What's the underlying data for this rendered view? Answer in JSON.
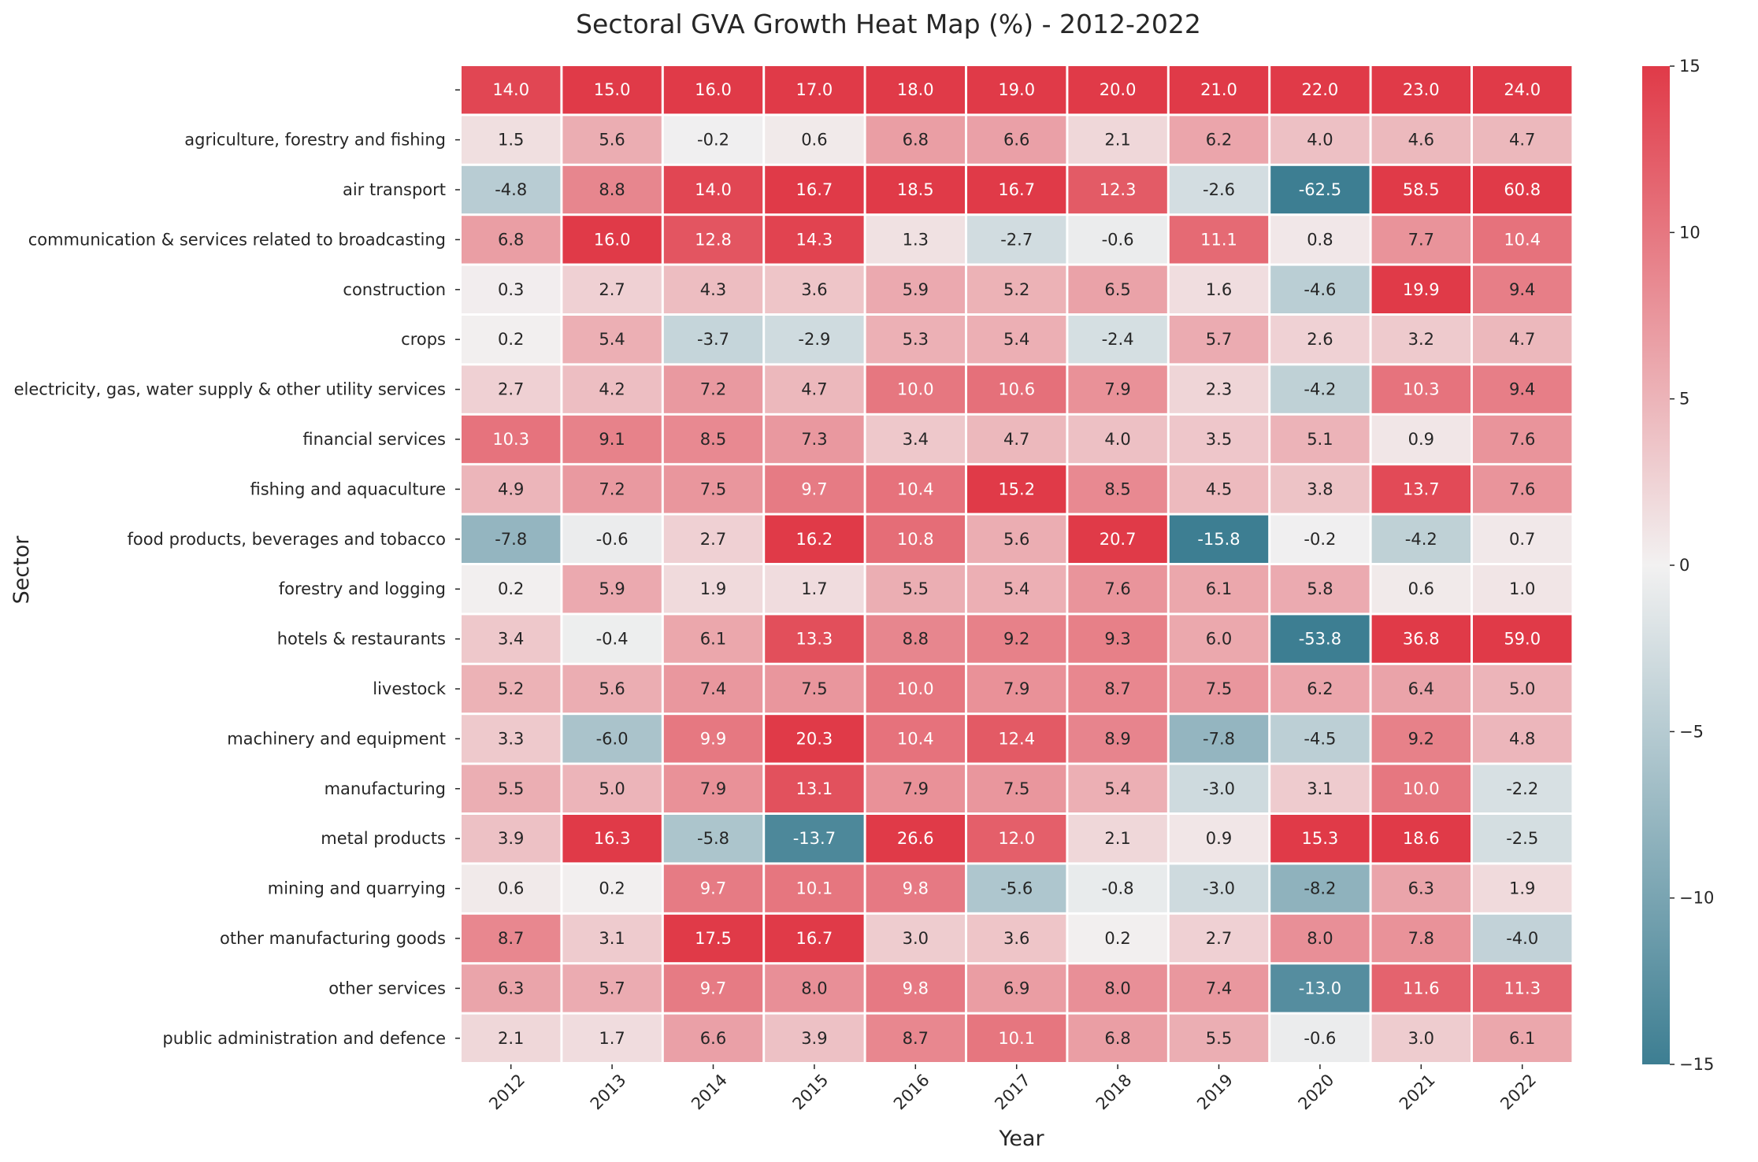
{
  "chart_data": {
    "type": "heatmap",
    "title": "Sectoral GVA Growth Heat Map (%) - 2012-2022",
    "xlabel": "Year",
    "ylabel": "Sector",
    "x": [
      "2012",
      "2013",
      "2014",
      "2015",
      "2016",
      "2017",
      "2018",
      "2019",
      "2020",
      "2021",
      "2022"
    ],
    "y": [
      "",
      "agriculture, forestry and fishing",
      "air transport",
      "communication & services related to broadcasting",
      "construction",
      "crops",
      "electricity, gas, water supply & other utility services",
      "financial services",
      "fishing and aquaculture",
      "food products, beverages and tobacco",
      "forestry and logging",
      "hotels & restaurants",
      "livestock",
      "machinery and equipment",
      "manufacturing",
      "metal products",
      "mining and quarrying",
      "other manufacturing goods",
      "other services",
      "public administration and defence"
    ],
    "values": [
      [
        14.0,
        15.0,
        16.0,
        17.0,
        18.0,
        19.0,
        20.0,
        21.0,
        22.0,
        23.0,
        24.0
      ],
      [
        1.5,
        5.6,
        -0.2,
        0.6,
        6.8,
        6.6,
        2.1,
        6.2,
        4.0,
        4.6,
        4.7
      ],
      [
        -4.8,
        8.8,
        14.0,
        16.7,
        18.5,
        16.7,
        12.3,
        -2.6,
        -62.5,
        58.5,
        60.8
      ],
      [
        6.8,
        16.0,
        12.8,
        14.3,
        1.3,
        -2.7,
        -0.6,
        11.1,
        0.8,
        7.7,
        10.4
      ],
      [
        0.3,
        2.7,
        4.3,
        3.6,
        5.9,
        5.2,
        6.5,
        1.6,
        -4.6,
        19.9,
        9.4
      ],
      [
        0.2,
        5.4,
        -3.7,
        -2.9,
        5.3,
        5.4,
        -2.4,
        5.7,
        2.6,
        3.2,
        4.7
      ],
      [
        2.7,
        4.2,
        7.2,
        4.7,
        10.0,
        10.6,
        7.9,
        2.3,
        -4.2,
        10.3,
        9.4
      ],
      [
        10.3,
        9.1,
        8.5,
        7.3,
        3.4,
        4.7,
        4.0,
        3.5,
        5.1,
        0.9,
        7.6
      ],
      [
        4.9,
        7.2,
        7.5,
        9.7,
        10.4,
        15.2,
        8.5,
        4.5,
        3.8,
        13.7,
        7.6
      ],
      [
        -7.8,
        -0.6,
        2.7,
        16.2,
        10.8,
        5.6,
        20.7,
        -15.8,
        -0.2,
        -4.2,
        0.7
      ],
      [
        0.2,
        5.9,
        1.9,
        1.7,
        5.5,
        5.4,
        7.6,
        6.1,
        5.8,
        0.6,
        1.0
      ],
      [
        3.4,
        -0.4,
        6.1,
        13.3,
        8.8,
        9.2,
        9.3,
        6.0,
        -53.8,
        36.8,
        59.0
      ],
      [
        5.2,
        5.6,
        7.4,
        7.5,
        10.0,
        7.9,
        8.7,
        7.5,
        6.2,
        6.4,
        5.0
      ],
      [
        3.3,
        -6.0,
        9.9,
        20.3,
        10.4,
        12.4,
        8.9,
        -7.8,
        -4.5,
        9.2,
        4.8
      ],
      [
        5.5,
        5.0,
        7.9,
        13.1,
        7.9,
        7.5,
        5.4,
        -3.0,
        3.1,
        10.0,
        -2.2
      ],
      [
        3.9,
        16.3,
        -5.8,
        -13.7,
        26.6,
        12.0,
        2.1,
        0.9,
        15.3,
        18.6,
        -2.5
      ],
      [
        0.6,
        0.2,
        9.7,
        10.1,
        9.8,
        -5.6,
        -0.8,
        -3.0,
        -8.2,
        6.3,
        1.9
      ],
      [
        8.7,
        3.1,
        17.5,
        16.7,
        3.0,
        3.6,
        0.2,
        2.7,
        8.0,
        7.8,
        -4.0
      ],
      [
        6.3,
        5.7,
        9.7,
        8.0,
        9.8,
        6.9,
        8.0,
        7.4,
        -13.0,
        11.6,
        11.3
      ],
      [
        2.1,
        1.7,
        6.6,
        3.9,
        8.7,
        10.1,
        6.8,
        5.5,
        -0.6,
        3.0,
        6.1
      ]
    ],
    "value_format": "0.0",
    "color_range": [
      -15,
      15
    ],
    "colorbar_ticks": [
      -15,
      -10,
      -5,
      0,
      5,
      10,
      15
    ],
    "colors": {
      "low": "#3d7e92",
      "mid": "#f2f1f1",
      "high": "#e03a48"
    },
    "grid": false
  }
}
